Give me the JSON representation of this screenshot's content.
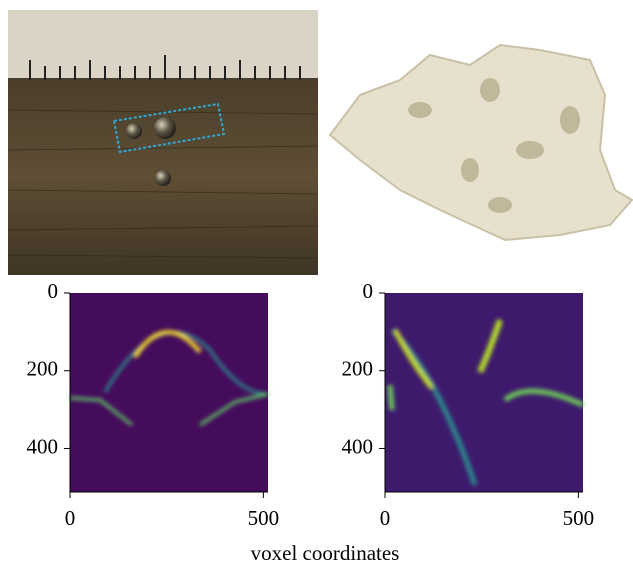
{
  "xlabel": "voxel coordinates",
  "chart_data": [
    {
      "type": "image",
      "xlim": [
        0,
        512
      ],
      "ylim": [
        512,
        0
      ],
      "xticks": [
        0,
        500
      ],
      "yticks": [
        0,
        200,
        400
      ]
    },
    {
      "type": "image",
      "xlim": [
        0,
        512
      ],
      "ylim": [
        512,
        0
      ],
      "xticks": [
        0,
        500
      ],
      "yticks": [
        0,
        200,
        400
      ]
    }
  ]
}
